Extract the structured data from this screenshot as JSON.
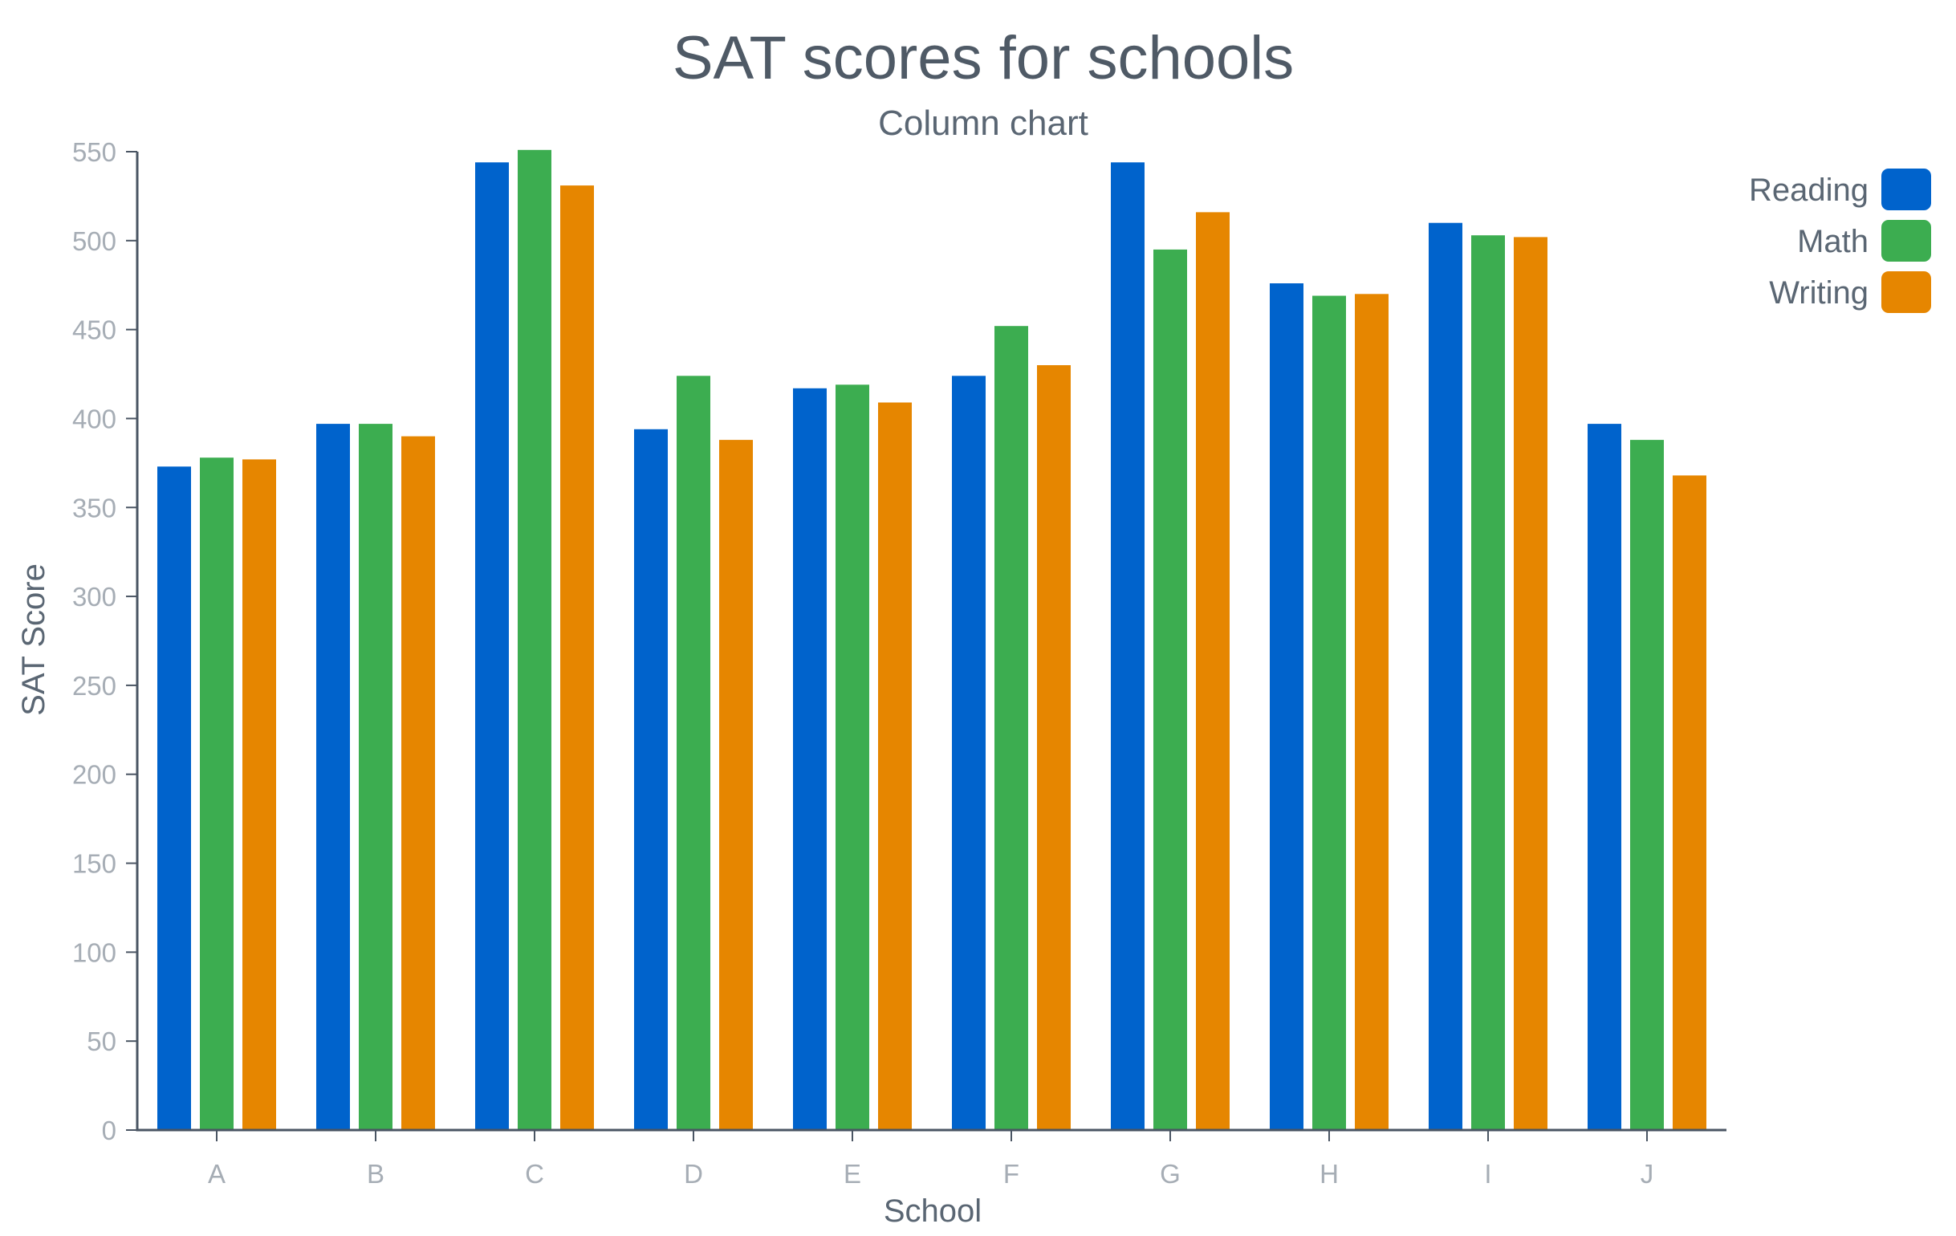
{
  "chart_data": {
    "type": "bar",
    "title": "SAT scores for schools",
    "subtitle": "Column chart",
    "xlabel": "School",
    "ylabel": "SAT Score",
    "categories": [
      "A",
      "B",
      "C",
      "D",
      "E",
      "F",
      "G",
      "H",
      "I",
      "J"
    ],
    "ylim": [
      0,
      550
    ],
    "yticks": [
      0,
      50,
      100,
      150,
      200,
      250,
      300,
      350,
      400,
      450,
      500,
      550
    ],
    "series": [
      {
        "name": "Reading",
        "color": "#0063cc",
        "values": [
          373,
          397,
          544,
          394,
          417,
          424,
          544,
          476,
          510,
          397
        ]
      },
      {
        "name": "Math",
        "color": "#3cad50",
        "values": [
          378,
          397,
          551,
          424,
          419,
          452,
          495,
          469,
          503,
          388
        ]
      },
      {
        "name": "Writing",
        "color": "#e68600",
        "values": [
          377,
          390,
          531,
          388,
          409,
          430,
          516,
          470,
          502,
          368
        ]
      }
    ],
    "legend_position": "top-right",
    "grid": false
  }
}
